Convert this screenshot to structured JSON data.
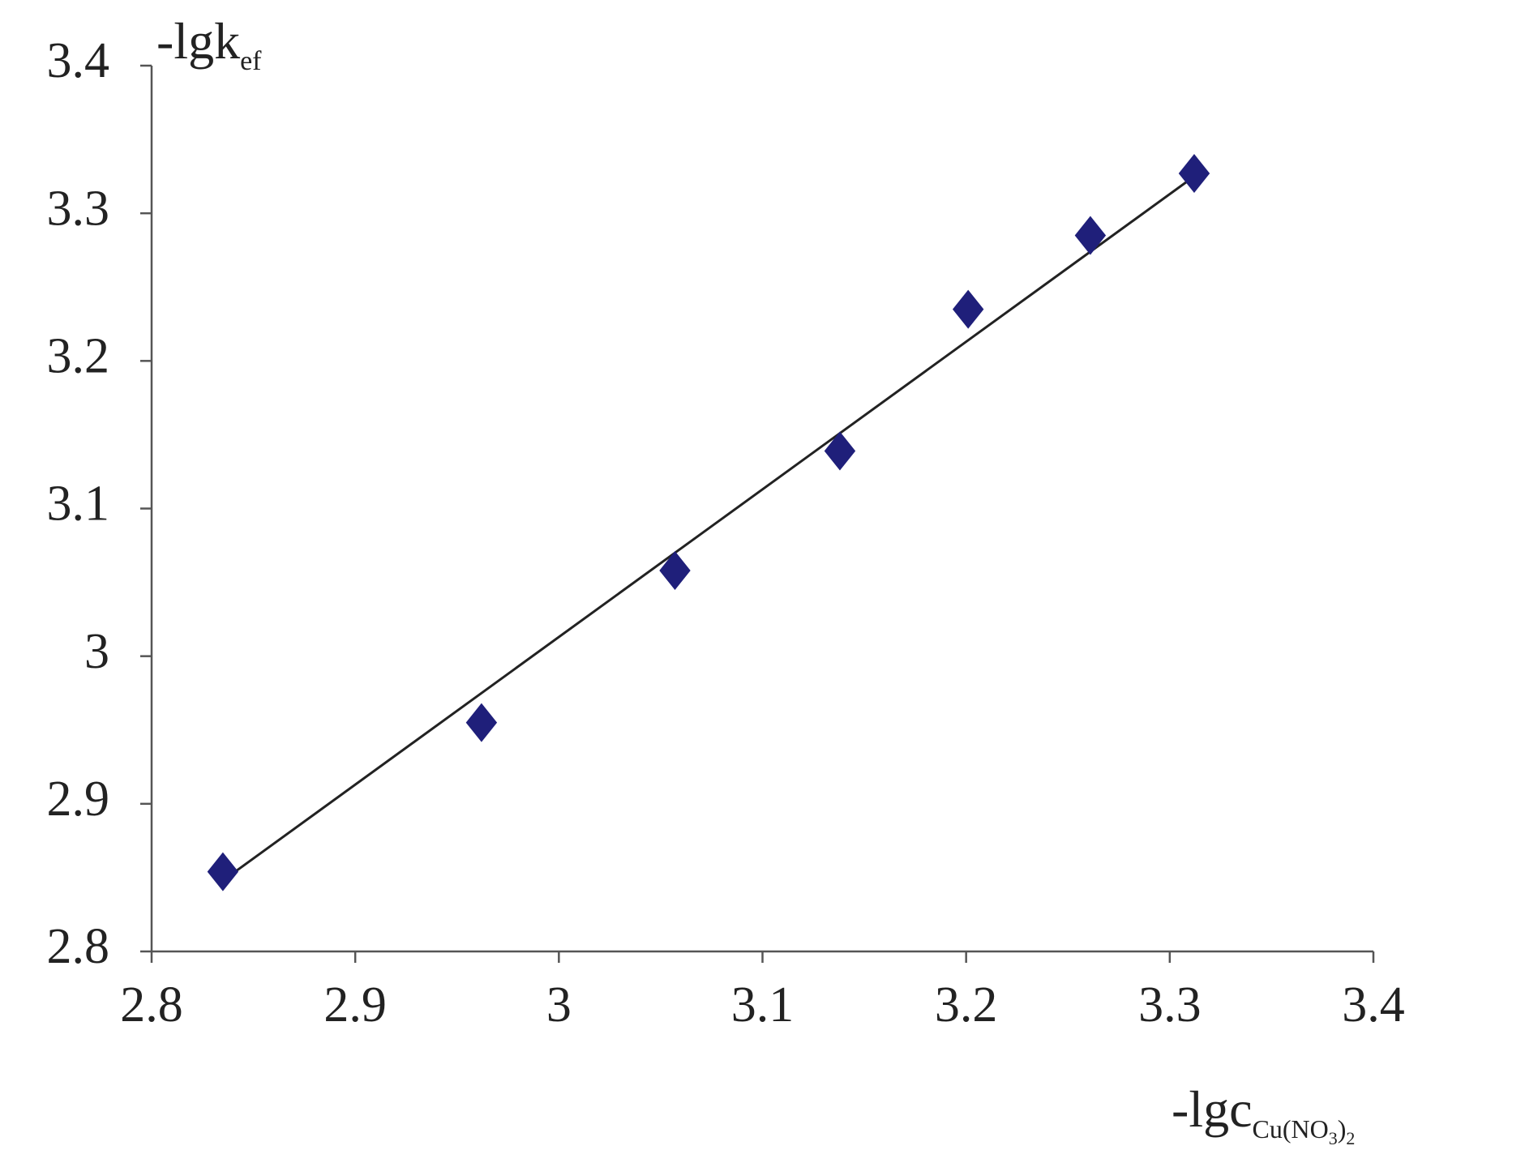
{
  "chart_data": {
    "type": "scatter",
    "y_label": [
      "-lgk",
      "ef"
    ],
    "x_label": [
      "-lgc",
      "Cu(NO",
      "3",
      ")",
      "2"
    ],
    "x": [
      2.835,
      2.962,
      3.057,
      3.138,
      3.201,
      3.261,
      3.312
    ],
    "series": [
      {
        "color": "#1f1f7a",
        "marker": "diamond",
        "values": [
          2.854,
          2.955,
          3.058,
          3.139,
          3.235,
          3.285,
          3.327
        ]
      }
    ],
    "trendline": {
      "color": "#222222",
      "x": [
        2.835,
        3.312
      ],
      "y": [
        2.848,
        3.325
      ]
    },
    "xlim": [
      2.8,
      3.4
    ],
    "xticks": [
      2.8,
      2.9,
      3,
      3.1,
      3.2,
      3.3,
      3.4
    ],
    "ylim": [
      2.8,
      3.4
    ],
    "yticks": [
      2.8,
      2.9,
      3,
      3.1,
      3.2,
      3.3,
      3.4
    ],
    "grid": false
  }
}
